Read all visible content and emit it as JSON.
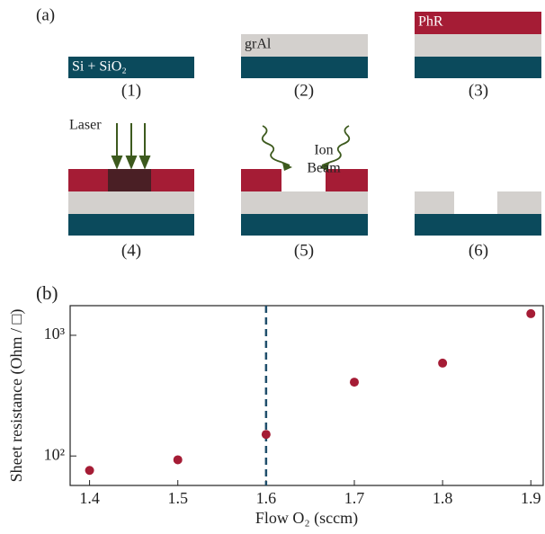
{
  "panel_a": {
    "label": "(a)",
    "steps": [
      "(1)",
      "(2)",
      "(3)",
      "(4)",
      "(5)",
      "(6)"
    ],
    "layers": {
      "substrate": "Si + SiO₂",
      "film": "grAl",
      "resist": "PhR"
    },
    "laser": "Laser",
    "ion_beam": [
      "Ion",
      "Beam"
    ]
  },
  "chart_data": {
    "type": "scatter",
    "panel_label": "(b)",
    "x": [
      1.4,
      1.5,
      1.6,
      1.7,
      1.8,
      1.9
    ],
    "values": [
      76,
      93,
      151,
      409,
      588,
      1510
    ],
    "color": "#a51c35",
    "xlabel": "Flow O₂  (sccm)",
    "ylabel": "Sheet resistance (Ohm / □)",
    "xlim": [
      1.378,
      1.914
    ],
    "ylim": [
      57,
      1760
    ],
    "ylog": true,
    "xticks": [
      1.4,
      1.5,
      1.6,
      1.7,
      1.8,
      1.9
    ],
    "yticks": [
      {
        "value": 100,
        "label": "10²"
      },
      {
        "value": 1000,
        "label": "10³"
      }
    ],
    "vline": 1.6,
    "vline_color": "#1f4e6b"
  }
}
